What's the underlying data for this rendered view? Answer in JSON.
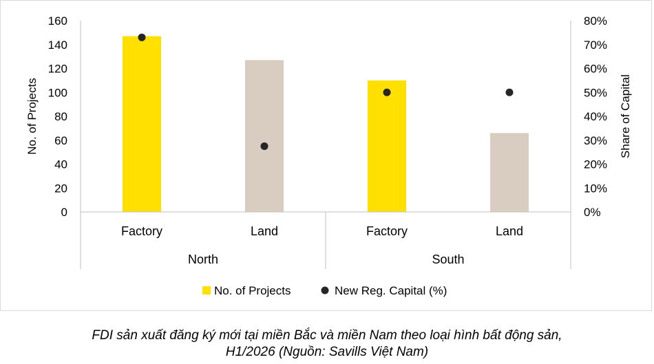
{
  "chart_data": {
    "type": "bar",
    "groups": [
      {
        "name": "North",
        "categories": [
          "Factory",
          "Land"
        ]
      },
      {
        "name": "South",
        "categories": [
          "Factory",
          "Land"
        ]
      }
    ],
    "series": [
      {
        "name": "No. of Projects",
        "kind": "bar",
        "axis": "left",
        "values": [
          147,
          127,
          110,
          66
        ]
      },
      {
        "name": "New Reg. Capital (%)",
        "kind": "scatter",
        "axis": "right",
        "values": [
          73,
          27.5,
          50,
          50
        ]
      }
    ],
    "bar_colors": [
      "#FFE000",
      "#D9CCC0",
      "#FFE000",
      "#D9CCC0"
    ],
    "marker_color": "#262626",
    "ylabel": "No. of Projects",
    "y2label": "Share of Capital",
    "ylim": [
      0,
      160
    ],
    "yticks": [
      "0",
      "20",
      "40",
      "60",
      "80",
      "100",
      "120",
      "140",
      "160"
    ],
    "y2lim": [
      0,
      80
    ],
    "y2ticks": [
      "0%",
      "10%",
      "20%",
      "30%",
      "40%",
      "50%",
      "60%",
      "70%",
      "80%"
    ],
    "legend_position": "bottom",
    "grid": false
  },
  "caption": {
    "line1": "FDI sản xuất đăng ký mới tại miền Bắc và miền Nam theo loại hình bất động sản,",
    "line2": "H1/2026 (Nguồn: Savills Việt Nam)"
  }
}
